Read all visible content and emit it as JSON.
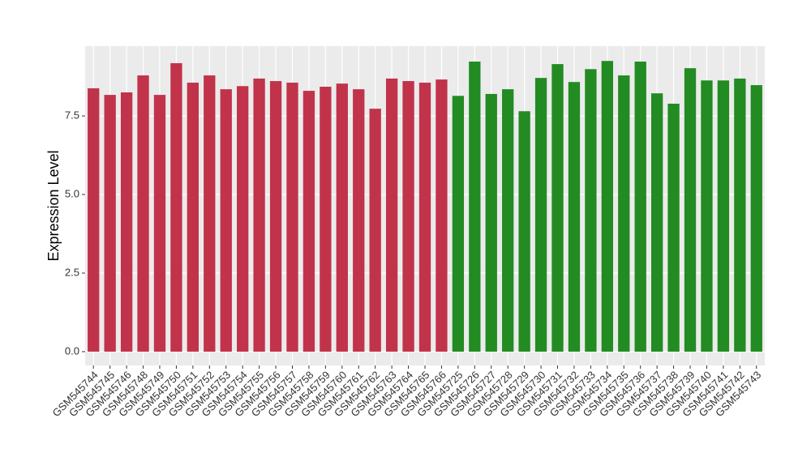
{
  "chart_data": {
    "type": "bar",
    "y_label": "Expression Level",
    "categories": [
      "GSM545744",
      "GSM545745",
      "GSM545746",
      "GSM545748",
      "GSM545749",
      "GSM545750",
      "GSM545751",
      "GSM545752",
      "GSM545753",
      "GSM545754",
      "GSM545755",
      "GSM545756",
      "GSM545757",
      "GSM545758",
      "GSM545759",
      "GSM545760",
      "GSM545761",
      "GSM545762",
      "GSM545763",
      "GSM545764",
      "GSM545765",
      "GSM545766",
      "GSM545725",
      "GSM545726",
      "GSM545727",
      "GSM545728",
      "GSM545729",
      "GSM545730",
      "GSM545731",
      "GSM545732",
      "GSM545733",
      "GSM545734",
      "GSM545735",
      "GSM545736",
      "GSM545737",
      "GSM545738",
      "GSM545739",
      "GSM545740",
      "GSM545741",
      "GSM545742",
      "GSM545743"
    ],
    "values": [
      8.38,
      8.17,
      8.25,
      8.79,
      8.17,
      9.18,
      8.56,
      8.79,
      8.35,
      8.45,
      8.69,
      8.61,
      8.56,
      8.3,
      8.43,
      8.53,
      8.35,
      7.73,
      8.69,
      8.61,
      8.56,
      8.66,
      8.14,
      9.23,
      8.2,
      8.35,
      7.65,
      8.71,
      9.15,
      8.58,
      8.99,
      9.25,
      8.79,
      9.23,
      8.22,
      7.89,
      9.02,
      8.63,
      8.63,
      8.69,
      8.48
    ],
    "colors": [
      "#c1334a",
      "#c1334a",
      "#c1334a",
      "#c1334a",
      "#c1334a",
      "#c1334a",
      "#c1334a",
      "#c1334a",
      "#c1334a",
      "#c1334a",
      "#c1334a",
      "#c1334a",
      "#c1334a",
      "#c1334a",
      "#c1334a",
      "#c1334a",
      "#c1334a",
      "#c1334a",
      "#c1334a",
      "#c1334a",
      "#c1334a",
      "#c1334a",
      "#228b22",
      "#228b22",
      "#228b22",
      "#228b22",
      "#228b22",
      "#228b22",
      "#228b22",
      "#228b22",
      "#228b22",
      "#228b22",
      "#228b22",
      "#228b22",
      "#228b22",
      "#228b22",
      "#228b22",
      "#228b22",
      "#228b22",
      "#228b22",
      "#228b22"
    ],
    "ylim": [
      -0.44,
      9.72
    ],
    "yticks": [
      {
        "value": 0,
        "label": "0.0"
      },
      2.5,
      {
        "value": 5,
        "label": "5.0"
      },
      7.5
    ],
    "grid": true
  }
}
